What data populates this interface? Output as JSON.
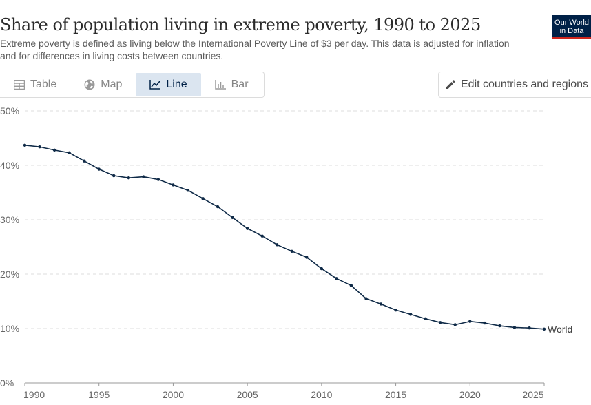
{
  "header": {
    "title": "Share of population living in extreme poverty, 1990 to 2025",
    "subtitle": "Extreme poverty is defined as living below the International Poverty Line of $3 per day. This data is adjusted for inflation and for differences in living costs between countries."
  },
  "logo": {
    "line1": "Our World",
    "line2": "in Data"
  },
  "tabs": [
    {
      "label": "Table",
      "icon": "table-icon",
      "active": false
    },
    {
      "label": "Map",
      "icon": "globe-icon",
      "active": false
    },
    {
      "label": "Line",
      "icon": "line-chart-icon",
      "active": true
    },
    {
      "label": "Bar",
      "icon": "bar-chart-icon",
      "active": false
    }
  ],
  "edit_button": {
    "label": "Edit countries and regions",
    "icon": "pencil-icon"
  },
  "colors": {
    "line": "#0f2a47",
    "grid": "#dddddd",
    "axis": "#999999",
    "active_tab_bg": "#dbe5f0"
  },
  "chart_data": {
    "type": "line",
    "title": "Share of population living in extreme poverty, 1990 to 2025",
    "xlabel": "",
    "ylabel": "",
    "xlim": [
      1990,
      2025
    ],
    "ylim": [
      0,
      50
    ],
    "grid": true,
    "x_ticks": [
      1990,
      1995,
      2000,
      2005,
      2010,
      2015,
      2020,
      2025
    ],
    "y_ticks": [
      0,
      10,
      20,
      30,
      40,
      50
    ],
    "y_tick_labels": [
      "0%",
      "10%",
      "20%",
      "30%",
      "40%",
      "50%"
    ],
    "series": [
      {
        "name": "World",
        "x": [
          1990,
          1991,
          1992,
          1993,
          1994,
          1995,
          1996,
          1997,
          1998,
          1999,
          2000,
          2001,
          2002,
          2003,
          2004,
          2005,
          2006,
          2007,
          2008,
          2009,
          2010,
          2011,
          2012,
          2013,
          2014,
          2015,
          2016,
          2017,
          2018,
          2019,
          2020,
          2021,
          2022,
          2023,
          2024,
          2025
        ],
        "values": [
          43.7,
          43.4,
          42.8,
          42.3,
          40.8,
          39.3,
          38.1,
          37.7,
          37.9,
          37.4,
          36.4,
          35.4,
          33.9,
          32.4,
          30.4,
          28.4,
          27.0,
          25.4,
          24.2,
          23.1,
          21.0,
          19.2,
          17.9,
          15.5,
          14.5,
          13.4,
          12.6,
          11.8,
          11.1,
          10.7,
          11.3,
          11.0,
          10.5,
          10.2,
          10.1,
          9.9
        ]
      }
    ]
  }
}
